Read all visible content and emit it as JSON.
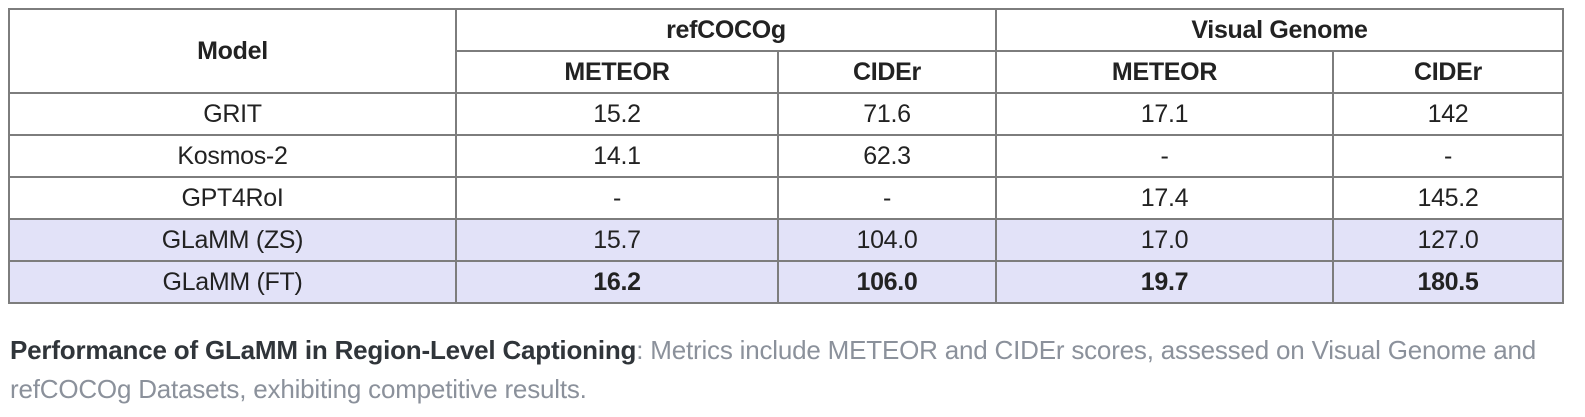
{
  "table": {
    "header": {
      "model": "Model",
      "groups": [
        {
          "label": "refCOCOg",
          "cols": [
            "METEOR",
            "CIDEr"
          ]
        },
        {
          "label": "Visual Genome",
          "cols": [
            "METEOR",
            "CIDEr"
          ]
        }
      ]
    },
    "rows": [
      {
        "model": "GRIT",
        "values": [
          "15.2",
          "71.6",
          "17.1",
          "142"
        ],
        "highlight": false,
        "bold": false
      },
      {
        "model": "Kosmos-2",
        "values": [
          "14.1",
          "62.3",
          "-",
          "-"
        ],
        "highlight": false,
        "bold": false
      },
      {
        "model": "GPT4RoI",
        "values": [
          "-",
          "-",
          "17.4",
          "145.2"
        ],
        "highlight": false,
        "bold": false
      },
      {
        "model": "GLaMM (ZS)",
        "values": [
          "15.7",
          "104.0",
          "17.0",
          "127.0"
        ],
        "highlight": true,
        "bold": false
      },
      {
        "model": "GLaMM (FT)",
        "values": [
          "16.2",
          "106.0",
          "19.7",
          "180.5"
        ],
        "highlight": true,
        "bold": true
      }
    ]
  },
  "caption": {
    "bold_lead": "Performance of GLaMM in Region-Level Captioning",
    "rest": ": Metrics include METEOR and CIDEr scores, assessed on Visual Genome and refCOCOg Datasets, exhibiting competitive results."
  },
  "colors": {
    "highlight_row_bg": "#e2e2f8",
    "table_border": "#7d7d7d",
    "table_text": "#222222",
    "caption_bold_text": "#30353a",
    "caption_gray_text": "#8b919b"
  }
}
